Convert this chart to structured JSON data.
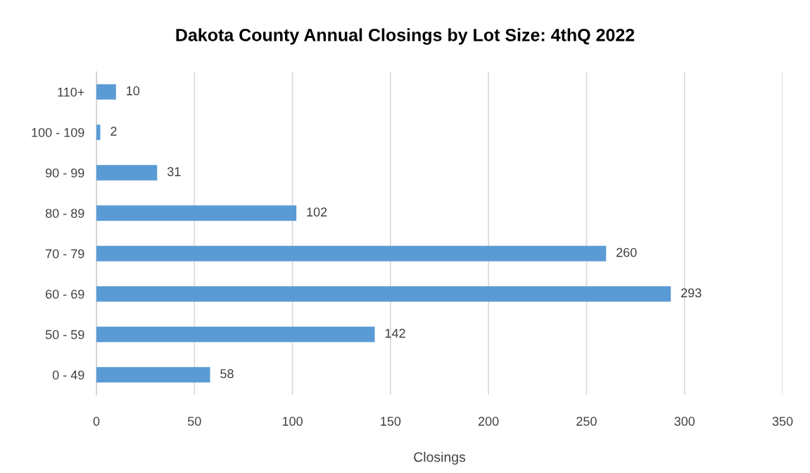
{
  "chart_data": {
    "type": "bar",
    "orientation": "horizontal",
    "title": "Dakota County Annual Closings by Lot Size: 4thQ 2022",
    "xlabel": "Closings",
    "categories": [
      "110+",
      "100 - 109",
      "90 - 99",
      "80 - 89",
      "70 - 79",
      "60 - 69",
      "50 - 59",
      "0 - 49"
    ],
    "values": [
      10,
      2,
      31,
      102,
      260,
      293,
      142,
      58
    ],
    "color": "#5b9bd5",
    "xlim": [
      0,
      350
    ],
    "xticks": [
      0,
      50,
      100,
      150,
      200,
      250,
      300,
      350
    ],
    "grid": "x",
    "data_labels": true
  }
}
